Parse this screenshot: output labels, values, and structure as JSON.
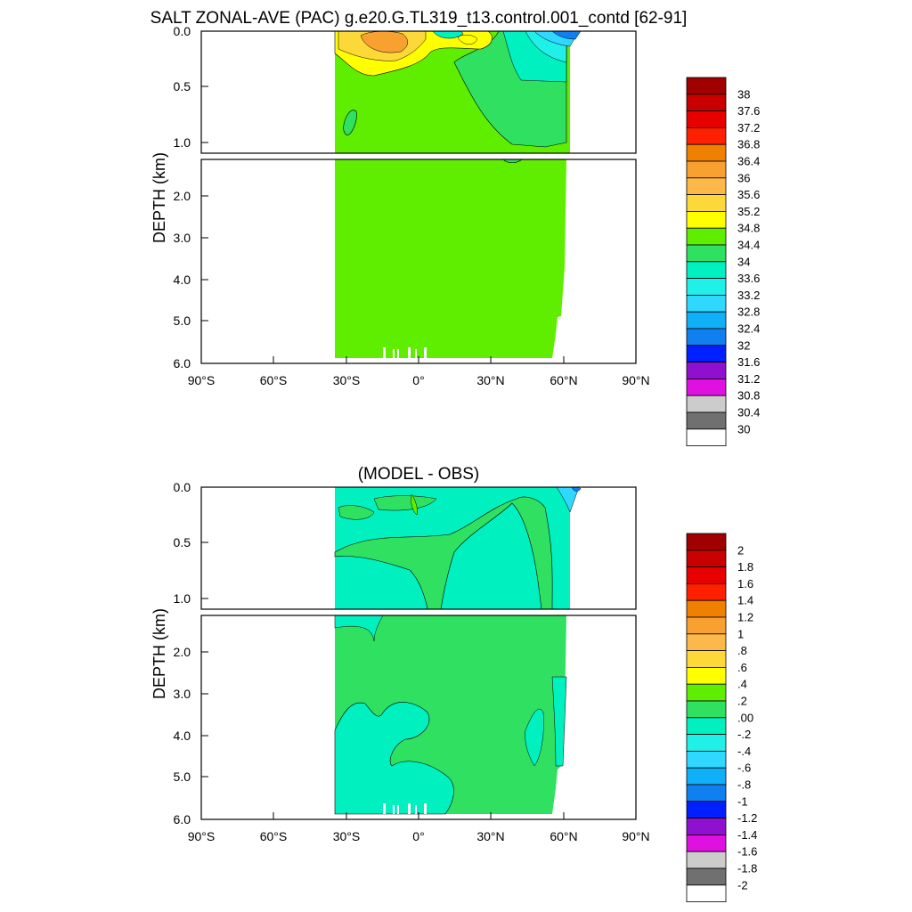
{
  "chart_data": [
    {
      "type": "heatmap",
      "title": "SALT ZONAL-AVE (PAC) g.e20.G.TL319_t13.control.001_contd [62-91]",
      "ylabel": "DEPTH (km)",
      "xlim": [
        -90,
        90
      ],
      "ylim_upper": [
        0.0,
        1.0
      ],
      "ylim_lower": [
        1.0,
        6.0
      ],
      "x_ticks": [
        "90°S",
        "60°S",
        "30°S",
        "0°",
        "30°N",
        "60°N",
        "90°N"
      ],
      "y_ticks_upper": [
        "0.0",
        "0.5",
        "1.0"
      ],
      "y_ticks_lower": [
        "2.0",
        "3.0",
        "4.0",
        "5.0",
        "6.0"
      ],
      "data_extent": {
        "lon_min": -35,
        "lon_max": 62,
        "depth_max": 5.9
      },
      "colorbar_labels": [
        "38",
        "37.6",
        "37.2",
        "36.8",
        "36.4",
        "36",
        "35.6",
        "35.2",
        "34.8",
        "34.4",
        "34",
        "33.6",
        "33.2",
        "32.8",
        "32.4",
        "32",
        "31.6",
        "31.2",
        "30.8",
        "30.4",
        "30"
      ],
      "colorbar_colors": [
        "#a00000",
        "#c80000",
        "#e80000",
        "#ff2000",
        "#f08000",
        "#f8a030",
        "#fcb848",
        "#fcd838",
        "#ffff00",
        "#60ee00",
        "#30e060",
        "#00f0c0",
        "#20f0e8",
        "#30d8ff",
        "#10b0f8",
        "#1080f0",
        "#0020ff",
        "#9010d0",
        "#e010e0",
        "#cccccc",
        "#707070",
        "#ffffff"
      ],
      "background_value": "34.4"
    },
    {
      "type": "heatmap",
      "title": "(MODEL - OBS)",
      "ylabel": "DEPTH (km)",
      "xlim": [
        -90,
        90
      ],
      "ylim_upper": [
        0.0,
        1.0
      ],
      "ylim_lower": [
        1.0,
        6.0
      ],
      "x_ticks": [
        "90°S",
        "60°S",
        "30°S",
        "0°",
        "30°N",
        "60°N",
        "90°N"
      ],
      "y_ticks_upper": [
        "0.0",
        "0.5",
        "1.0"
      ],
      "y_ticks_lower": [
        "2.0",
        "3.0",
        "4.0",
        "5.0",
        "6.0"
      ],
      "data_extent": {
        "lon_min": -35,
        "lon_max": 62,
        "depth_max": 5.9
      },
      "colorbar_labels": [
        "2",
        "1.8",
        "1.6",
        "1.4",
        "1.2",
        "1",
        ".8",
        ".6",
        ".4",
        ".2",
        ".00",
        "-.2",
        "-.4",
        "-.6",
        "-.8",
        "-1",
        "-1.2",
        "-1.4",
        "-1.6",
        "-1.8",
        "-2"
      ],
      "colorbar_colors": [
        "#a00000",
        "#c80000",
        "#e80000",
        "#ff2000",
        "#f08000",
        "#f8a030",
        "#fcb848",
        "#fcd838",
        "#ffff00",
        "#60ee00",
        "#30e060",
        "#00f0c0",
        "#20f0e8",
        "#30d8ff",
        "#10b0f8",
        "#1080f0",
        "#0020ff",
        "#9010d0",
        "#e010e0",
        "#cccccc",
        "#707070",
        "#ffffff"
      ]
    }
  ]
}
